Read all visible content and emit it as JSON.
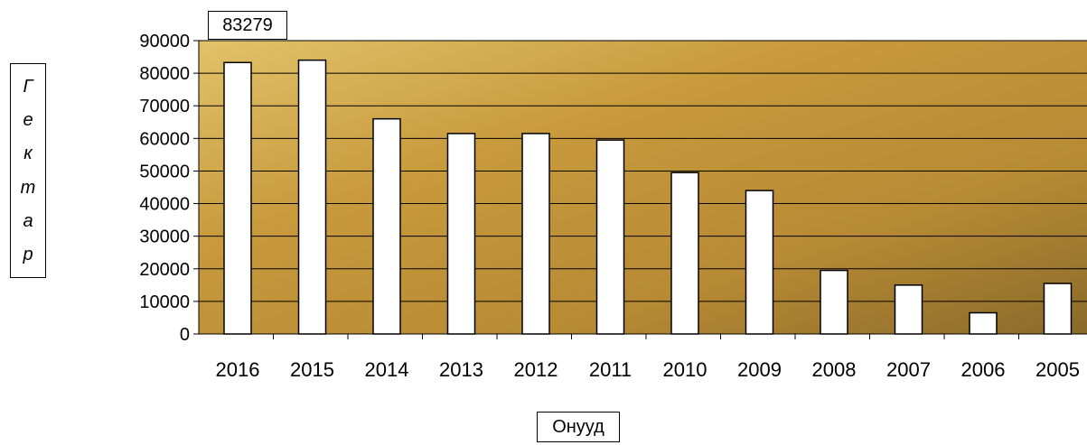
{
  "chart_data": {
    "type": "bar",
    "categories": [
      "2016",
      "2015",
      "2014",
      "2013",
      "2012",
      "2011",
      "2010",
      "2009",
      "2008",
      "2007",
      "2006",
      "2005"
    ],
    "values": [
      83279,
      84000,
      66000,
      61500,
      61500,
      59500,
      49500,
      44000,
      19500,
      15000,
      6500,
      15500
    ],
    "xlabel": "Онууд",
    "ylabel_letters": [
      "Г",
      "е",
      "к",
      "т",
      "а",
      "р"
    ],
    "ylim": [
      0,
      90000
    ],
    "yticks": [
      "0",
      "10000",
      "20000",
      "30000",
      "40000",
      "50000",
      "60000",
      "70000",
      "80000",
      "90000"
    ],
    "data_label": "83279",
    "grid": true,
    "colors": {
      "bar_fill": "#ffffff",
      "bar_stroke": "#000000",
      "grid": "#000000",
      "plot_bg": "#c9a24a"
    }
  }
}
